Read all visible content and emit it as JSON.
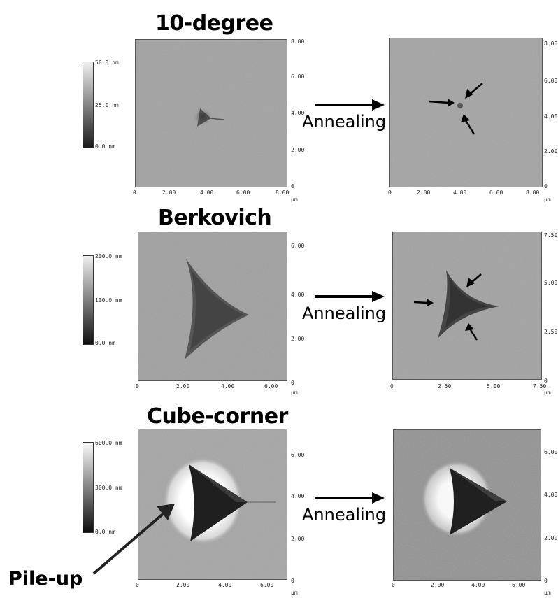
{
  "rows": [
    {
      "title": "10-degree",
      "colorbar": [
        "50.0 nm",
        "25.0 nm",
        "0.0 nm"
      ],
      "left_axis": {
        "x": [
          "0",
          "2.00",
          "4.00",
          "6.00",
          "8.00"
        ],
        "y": [
          "8.00",
          "6.00",
          "4.00",
          "2.00",
          "0"
        ],
        "unit": "µm"
      },
      "right_axis": {
        "x": [
          "0",
          "2.00",
          "4.00",
          "6.00",
          "8.00"
        ],
        "y": [
          "8.00",
          "6.00",
          "4.00",
          "2.00",
          "0"
        ],
        "unit": "µm"
      },
      "arrow_label": "Annealing"
    },
    {
      "title": "Berkovich",
      "colorbar": [
        "200.0 nm",
        "100.0 nm",
        "0.0 nm"
      ],
      "left_axis": {
        "x": [
          "0",
          "2.00",
          "4.00",
          "6.00"
        ],
        "y": [
          "6.00",
          "4.00",
          "2.00",
          "0"
        ],
        "unit": "µm"
      },
      "right_axis": {
        "x": [
          "0",
          "2.50",
          "5.00",
          "7.50"
        ],
        "y": [
          "7.50",
          "5.00",
          "2.50",
          "0"
        ],
        "unit": "µm"
      },
      "arrow_label": "Annealing"
    },
    {
      "title": "Cube-corner",
      "colorbar": [
        "600.0 nm",
        "300.0 nm",
        "0.0 nm"
      ],
      "left_axis": {
        "x": [
          "0",
          "2.00",
          "4.00",
          "6.00"
        ],
        "y": [
          "6.00",
          "4.00",
          "2.00",
          "0"
        ],
        "unit": "µm"
      },
      "right_axis": {
        "x": [
          "0",
          "2.00",
          "4.00",
          "6.00"
        ],
        "y": [
          "6.00",
          "4.00",
          "2.00",
          "0"
        ],
        "unit": "µm"
      },
      "arrow_label": "Annealing"
    }
  ],
  "pileup_label": "Pile-up",
  "colors": {
    "background": "#9a9a9a",
    "dark": "#2a2a2a",
    "light": "#f4f4f4",
    "text": "#000000"
  }
}
